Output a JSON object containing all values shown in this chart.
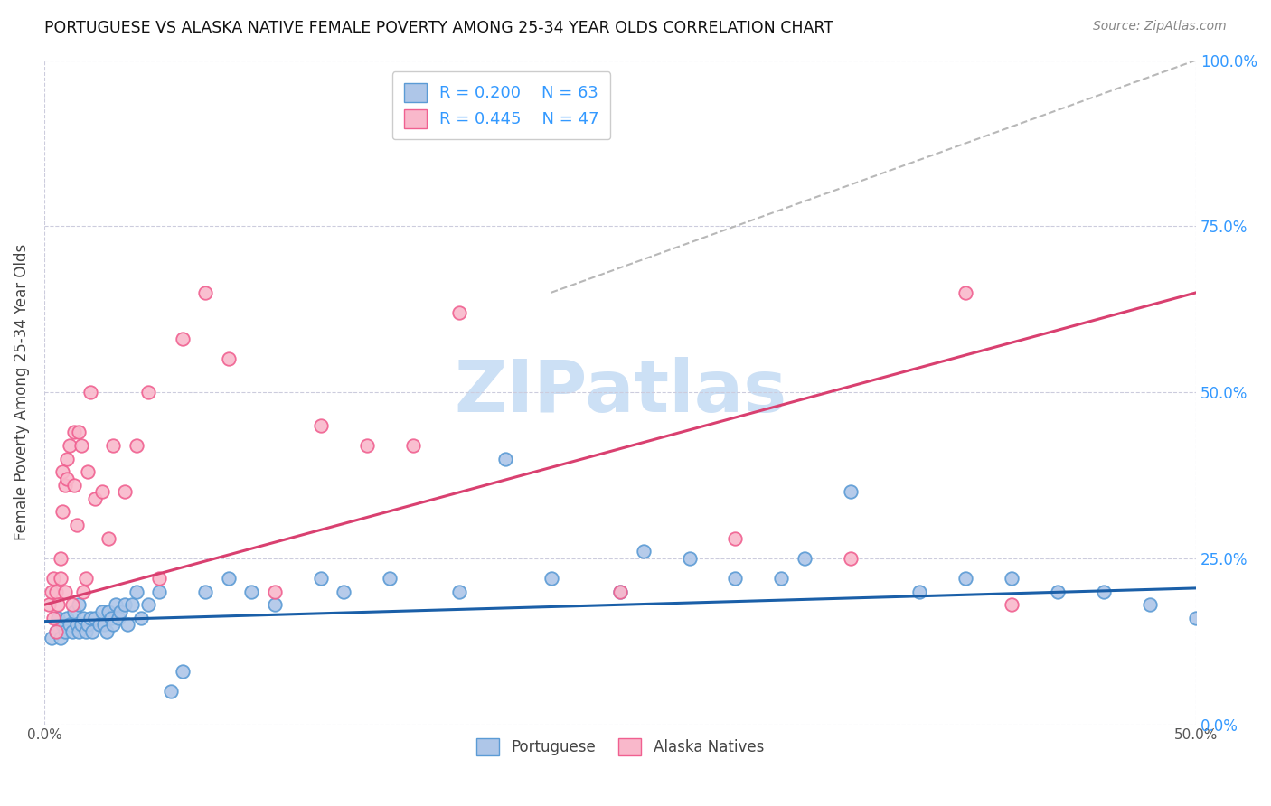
{
  "title": "PORTUGUESE VS ALASKA NATIVE FEMALE POVERTY AMONG 25-34 YEAR OLDS CORRELATION CHART",
  "source": "Source: ZipAtlas.com",
  "ylabel": "Female Poverty Among 25-34 Year Olds",
  "xlim": [
    0.0,
    0.5
  ],
  "ylim": [
    0.0,
    1.0
  ],
  "ytick_positions": [
    0.0,
    0.25,
    0.5,
    0.75,
    1.0
  ],
  "xtick_positions": [
    0.0,
    0.5
  ],
  "portuguese_color": "#aec6e8",
  "alaska_color": "#f9b8cb",
  "portuguese_edge": "#5b9bd5",
  "alaska_edge": "#f06090",
  "trend_portuguese_color": "#1a5fa8",
  "trend_alaska_color": "#d94070",
  "trend_diagonal_color": "#b8b8b8",
  "r_portuguese": 0.2,
  "n_portuguese": 63,
  "r_alaska": 0.445,
  "n_alaska": 47,
  "legend_r_color": "#3399ff",
  "legend_n_color": "#33aa33",
  "portuguese_scatter_x": [
    0.003,
    0.005,
    0.006,
    0.007,
    0.008,
    0.009,
    0.01,
    0.011,
    0.012,
    0.013,
    0.014,
    0.015,
    0.015,
    0.016,
    0.017,
    0.018,
    0.019,
    0.02,
    0.021,
    0.022,
    0.024,
    0.025,
    0.026,
    0.027,
    0.028,
    0.029,
    0.03,
    0.031,
    0.032,
    0.033,
    0.035,
    0.036,
    0.038,
    0.04,
    0.042,
    0.045,
    0.05,
    0.055,
    0.06,
    0.07,
    0.08,
    0.09,
    0.1,
    0.12,
    0.13,
    0.15,
    0.18,
    0.2,
    0.22,
    0.25,
    0.28,
    0.3,
    0.33,
    0.35,
    0.38,
    0.4,
    0.42,
    0.44,
    0.46,
    0.48,
    0.5,
    0.26,
    0.32
  ],
  "portuguese_scatter_y": [
    0.13,
    0.14,
    0.16,
    0.13,
    0.15,
    0.14,
    0.16,
    0.15,
    0.14,
    0.17,
    0.15,
    0.14,
    0.18,
    0.15,
    0.16,
    0.14,
    0.15,
    0.16,
    0.14,
    0.16,
    0.15,
    0.17,
    0.15,
    0.14,
    0.17,
    0.16,
    0.15,
    0.18,
    0.16,
    0.17,
    0.18,
    0.15,
    0.18,
    0.2,
    0.16,
    0.18,
    0.2,
    0.05,
    0.08,
    0.2,
    0.22,
    0.2,
    0.18,
    0.22,
    0.2,
    0.22,
    0.2,
    0.4,
    0.22,
    0.2,
    0.25,
    0.22,
    0.25,
    0.35,
    0.2,
    0.22,
    0.22,
    0.2,
    0.2,
    0.18,
    0.16,
    0.26,
    0.22
  ],
  "alaska_scatter_x": [
    0.002,
    0.003,
    0.004,
    0.004,
    0.005,
    0.005,
    0.006,
    0.007,
    0.007,
    0.008,
    0.008,
    0.009,
    0.009,
    0.01,
    0.01,
    0.011,
    0.012,
    0.013,
    0.013,
    0.014,
    0.015,
    0.016,
    0.017,
    0.018,
    0.019,
    0.02,
    0.022,
    0.025,
    0.028,
    0.03,
    0.035,
    0.04,
    0.045,
    0.05,
    0.06,
    0.07,
    0.08,
    0.1,
    0.12,
    0.14,
    0.16,
    0.18,
    0.25,
    0.3,
    0.35,
    0.4,
    0.42
  ],
  "alaska_scatter_y": [
    0.18,
    0.2,
    0.16,
    0.22,
    0.14,
    0.2,
    0.18,
    0.22,
    0.25,
    0.32,
    0.38,
    0.2,
    0.36,
    0.4,
    0.37,
    0.42,
    0.18,
    0.36,
    0.44,
    0.3,
    0.44,
    0.42,
    0.2,
    0.22,
    0.38,
    0.5,
    0.34,
    0.35,
    0.28,
    0.42,
    0.35,
    0.42,
    0.5,
    0.22,
    0.58,
    0.65,
    0.55,
    0.2,
    0.45,
    0.42,
    0.42,
    0.62,
    0.2,
    0.28,
    0.25,
    0.65,
    0.18
  ],
  "diag_line_x": [
    0.22,
    0.5
  ],
  "diag_line_y": [
    0.65,
    1.0
  ],
  "watermark_text": "ZIPatlas",
  "watermark_color": "#cce0f5",
  "figsize": [
    14.06,
    8.92
  ],
  "dpi": 100
}
